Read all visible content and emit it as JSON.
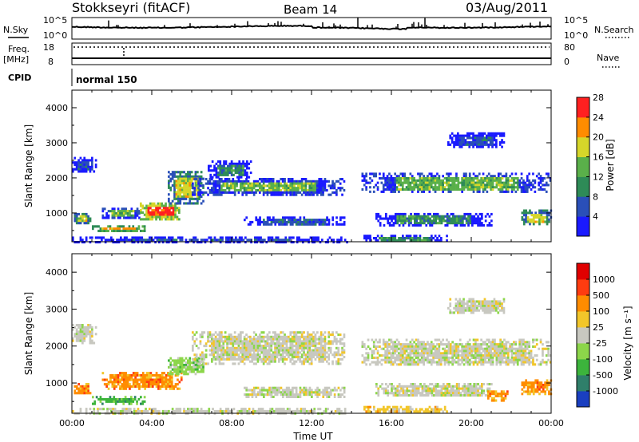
{
  "header": {
    "station": "Stokkseyri (fitACF)",
    "beam": "Beam 14",
    "date": "03/Aug/2011"
  },
  "aux": {
    "nsky_label": "N.Sky",
    "nsearch_label": "N.Search",
    "noise_ticks": [
      "10^5",
      "10^0"
    ],
    "freq_label": "Freq.",
    "freq_unit": "[MHz]",
    "freq_ticks": [
      "18",
      "8"
    ],
    "nave_label": "Nave",
    "nave_ticks": [
      "80",
      "0"
    ],
    "cpid_label": "CPID",
    "cpid_value": "normal 150"
  },
  "chart_data": [
    {
      "type": "heatmap",
      "name": "power",
      "ylabel": "Slant Range [km]",
      "xlabel": "",
      "x_ticks": [
        "00:00",
        "04:00",
        "08:00",
        "12:00",
        "16:00",
        "20:00",
        "00:00"
      ],
      "x_range_hours": [
        0,
        24
      ],
      "y_ticks": [
        1000,
        2000,
        3000,
        4000
      ],
      "ylim": [
        180,
        4500
      ],
      "colorbar": {
        "label": "Power [dB]",
        "ticks": [
          "4",
          "8",
          "12",
          "16",
          "20",
          "24",
          "28"
        ],
        "colors": [
          "#1a1aff",
          "#2a4fb8",
          "#2e8b57",
          "#5ab04a",
          "#d6d62a",
          "#ff8c00",
          "#ff2020"
        ]
      },
      "patches": [
        {
          "t0": 0.0,
          "t1": 1.2,
          "r0": 2200,
          "r1": 2600,
          "level": 1
        },
        {
          "t0": 0.1,
          "t1": 0.9,
          "r0": 700,
          "r1": 1000,
          "level": 4
        },
        {
          "t0": 1.0,
          "t1": 3.6,
          "r0": 500,
          "r1": 650,
          "level": 5
        },
        {
          "t0": 1.5,
          "t1": 3.4,
          "r0": 850,
          "r1": 1150,
          "level": 3
        },
        {
          "t0": 3.4,
          "t1": 5.4,
          "r0": 850,
          "r1": 1300,
          "level": 6
        },
        {
          "t0": 4.8,
          "t1": 6.6,
          "r0": 1300,
          "r1": 2200,
          "level": 4
        },
        {
          "t0": 6.0,
          "t1": 13.6,
          "r0": 1550,
          "r1": 2000,
          "level": 3
        },
        {
          "t0": 6.8,
          "t1": 9.0,
          "r0": 2000,
          "r1": 2500,
          "level": 2
        },
        {
          "t0": 8.6,
          "t1": 13.6,
          "r0": 650,
          "r1": 900,
          "level": 1
        },
        {
          "t0": 0.0,
          "t1": 13.8,
          "r0": 200,
          "r1": 330,
          "level": 1
        },
        {
          "t0": 14.5,
          "t1": 24.0,
          "r0": 1600,
          "r1": 2150,
          "level": 3
        },
        {
          "t0": 15.2,
          "t1": 21.0,
          "r0": 650,
          "r1": 1000,
          "level": 2
        },
        {
          "t0": 18.8,
          "t1": 21.6,
          "r0": 2900,
          "r1": 3300,
          "level": 1
        },
        {
          "t0": 22.5,
          "t1": 24.0,
          "r0": 700,
          "r1": 1100,
          "level": 4
        },
        {
          "t0": 14.6,
          "t1": 18.8,
          "r0": 220,
          "r1": 380,
          "level": 2
        }
      ]
    },
    {
      "type": "heatmap",
      "name": "velocity",
      "ylabel": "Slant Range [km]",
      "xlabel": "Time UT",
      "x_ticks": [
        "00:00",
        "04:00",
        "08:00",
        "12:00",
        "16:00",
        "20:00",
        "00:00"
      ],
      "x_range_hours": [
        0,
        24
      ],
      "y_ticks": [
        1000,
        2000,
        3000,
        4000
      ],
      "ylim": [
        180,
        4500
      ],
      "colorbar": {
        "label": "Velocity [m s⁻¹]",
        "ticks": [
          "1000",
          "500",
          "100",
          "25",
          "-25",
          "-100",
          "-500",
          "-1000"
        ],
        "colors": [
          "#1a3fc0",
          "#2f7f6a",
          "#3cb43c",
          "#8cd64a",
          "#c8c8c0",
          "#f2c62a",
          "#ff8c00",
          "#ff3c10",
          "#e00000"
        ]
      },
      "patches": [
        {
          "t0": 0.0,
          "t1": 1.2,
          "r0": 2100,
          "r1": 2600,
          "level": 4
        },
        {
          "t0": 0.1,
          "t1": 0.9,
          "r0": 700,
          "r1": 1000,
          "level": 6
        },
        {
          "t0": 1.0,
          "t1": 3.6,
          "r0": 450,
          "r1": 650,
          "level": 2
        },
        {
          "t0": 1.5,
          "t1": 5.5,
          "r0": 850,
          "r1": 1300,
          "level": 6
        },
        {
          "t0": 4.8,
          "t1": 6.6,
          "r0": 1250,
          "r1": 1700,
          "level": 3
        },
        {
          "t0": 6.0,
          "t1": 13.6,
          "r0": 1550,
          "r1": 2400,
          "level": 4
        },
        {
          "t0": 8.6,
          "t1": 13.6,
          "r0": 650,
          "r1": 900,
          "level": 4
        },
        {
          "t0": 0.0,
          "t1": 13.8,
          "r0": 200,
          "r1": 330,
          "level": 4
        },
        {
          "t0": 14.5,
          "t1": 24.0,
          "r0": 1500,
          "r1": 2200,
          "level": 4
        },
        {
          "t0": 15.2,
          "t1": 21.0,
          "r0": 650,
          "r1": 1000,
          "level": 4
        },
        {
          "t0": 18.8,
          "t1": 21.6,
          "r0": 2900,
          "r1": 3300,
          "level": 4
        },
        {
          "t0": 22.5,
          "t1": 24.0,
          "r0": 700,
          "r1": 1100,
          "level": 6
        },
        {
          "t0": 14.6,
          "t1": 18.8,
          "r0": 220,
          "r1": 380,
          "level": 5
        },
        {
          "t0": 20.8,
          "t1": 21.8,
          "r0": 550,
          "r1": 800,
          "level": 6
        }
      ]
    }
  ]
}
